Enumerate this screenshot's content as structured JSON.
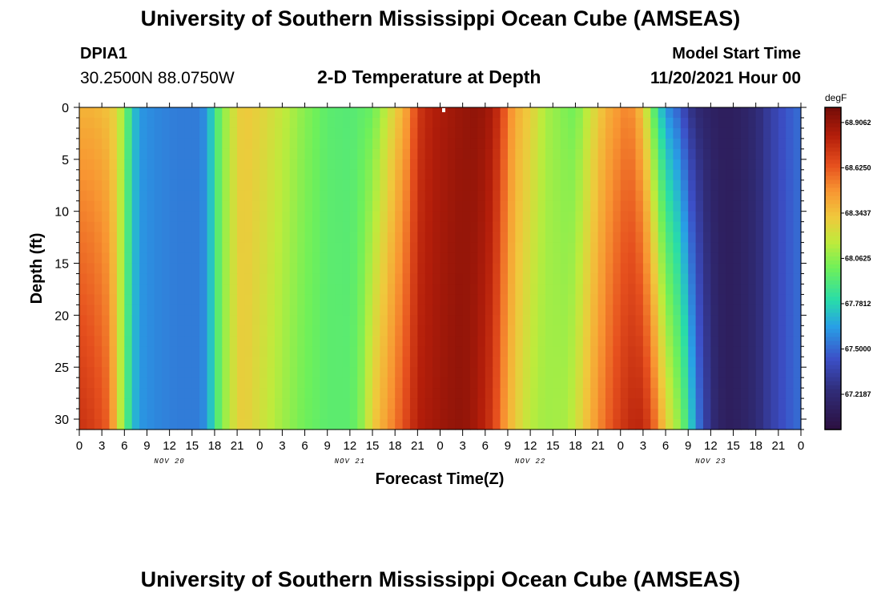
{
  "header": {
    "title": "University of Southern Mississippi Ocean Cube (AMSEAS)",
    "station": "DPIA1",
    "coords": "30.2500N  88.0750W",
    "subtitle": "2-D Temperature at Depth",
    "start_label": "Model Start Time",
    "start_value": "11/20/2021 Hour 00"
  },
  "footer": {
    "title": "University of Southern Mississippi Ocean Cube (AMSEAS)"
  },
  "chart_data": {
    "type": "heatmap",
    "title": "2-D Temperature at Depth",
    "xlabel": "Forecast Time(Z)",
    "ylabel": "Depth (ft)",
    "x_hours_range": [
      0,
      96
    ],
    "ylim": [
      0,
      31
    ],
    "y_ticks": [
      0,
      5,
      10,
      15,
      20,
      25,
      30
    ],
    "x_tick_labels": [
      "0",
      "3",
      "6",
      "9",
      "12",
      "15",
      "18",
      "21",
      "0",
      "3",
      "6",
      "9",
      "12",
      "15",
      "18",
      "21",
      "0",
      "3",
      "6",
      "9",
      "12",
      "15",
      "18",
      "21",
      "0",
      "3",
      "6",
      "9",
      "12",
      "15",
      "18",
      "21",
      "0"
    ],
    "day_labels": [
      {
        "label": "NOV 20",
        "hour": 12
      },
      {
        "label": "NOV 21",
        "hour": 36
      },
      {
        "label": "NOV 22",
        "hour": 60
      },
      {
        "label": "NOV 23",
        "hour": 84
      }
    ],
    "colorbar": {
      "unit": "degF",
      "min": 67.0,
      "max": 69.0,
      "tick_labels": [
        "68.9062",
        "68.6250",
        "68.3437",
        "68.0625",
        "67.7812",
        "67.5000",
        "67.2187"
      ],
      "tick_values": [
        68.9062,
        68.625,
        68.3437,
        68.0625,
        67.7812,
        67.5,
        67.2187
      ]
    },
    "surface_profile": {
      "hours": [
        0,
        2,
        4,
        5,
        6,
        7,
        8,
        10,
        13,
        16,
        17,
        18,
        19,
        20,
        21,
        22,
        24,
        27,
        30,
        33,
        36,
        39,
        40,
        42,
        44,
        45,
        47,
        49,
        51,
        53,
        55,
        56,
        57,
        58,
        60,
        62,
        65,
        66,
        68,
        70,
        72,
        73,
        74,
        75,
        76,
        77,
        78,
        80,
        81,
        82,
        84,
        86,
        88,
        90,
        92,
        94,
        96
      ],
      "temps_degF": [
        68.38,
        68.38,
        68.33,
        68.25,
        68.05,
        67.78,
        67.62,
        67.58,
        67.55,
        67.55,
        67.62,
        67.85,
        68.05,
        68.15,
        68.28,
        68.32,
        68.28,
        68.18,
        68.05,
        67.95,
        67.93,
        67.98,
        68.08,
        68.28,
        68.5,
        68.72,
        68.82,
        68.86,
        68.9,
        68.92,
        68.85,
        68.72,
        68.55,
        68.42,
        68.3,
        68.12,
        68.02,
        68.0,
        68.2,
        68.38,
        68.48,
        68.52,
        68.45,
        68.3,
        68.05,
        67.8,
        67.6,
        67.45,
        67.3,
        67.22,
        67.15,
        67.12,
        67.15,
        67.22,
        67.35,
        67.45,
        67.52
      ]
    },
    "bottom_profile": {
      "hours": [
        0,
        2,
        4,
        5,
        6,
        7,
        8,
        10,
        13,
        16,
        17,
        18,
        19,
        20,
        21,
        22,
        24,
        27,
        30,
        33,
        36,
        37,
        38,
        39,
        42,
        44,
        45,
        47,
        49,
        51,
        53,
        55,
        56,
        57,
        58,
        60,
        62,
        65,
        66,
        68,
        70,
        72,
        74,
        75,
        76,
        77,
        78,
        80,
        81,
        82,
        84,
        86,
        88,
        90,
        92,
        94,
        96
      ],
      "temps_degF": [
        68.75,
        68.7,
        68.6,
        68.3,
        68.0,
        67.75,
        67.62,
        67.58,
        67.55,
        67.55,
        67.62,
        67.85,
        68.05,
        68.15,
        68.28,
        68.3,
        68.22,
        68.1,
        68.0,
        67.95,
        67.95,
        68.0,
        68.12,
        68.3,
        68.55,
        68.72,
        68.82,
        68.86,
        68.9,
        68.92,
        68.85,
        68.72,
        68.55,
        68.42,
        68.3,
        68.15,
        68.1,
        68.12,
        68.2,
        68.4,
        68.58,
        68.72,
        68.8,
        68.78,
        68.68,
        68.5,
        68.3,
        68.05,
        67.85,
        67.6,
        67.25,
        67.12,
        67.15,
        67.22,
        67.35,
        67.45,
        67.52
      ]
    }
  }
}
